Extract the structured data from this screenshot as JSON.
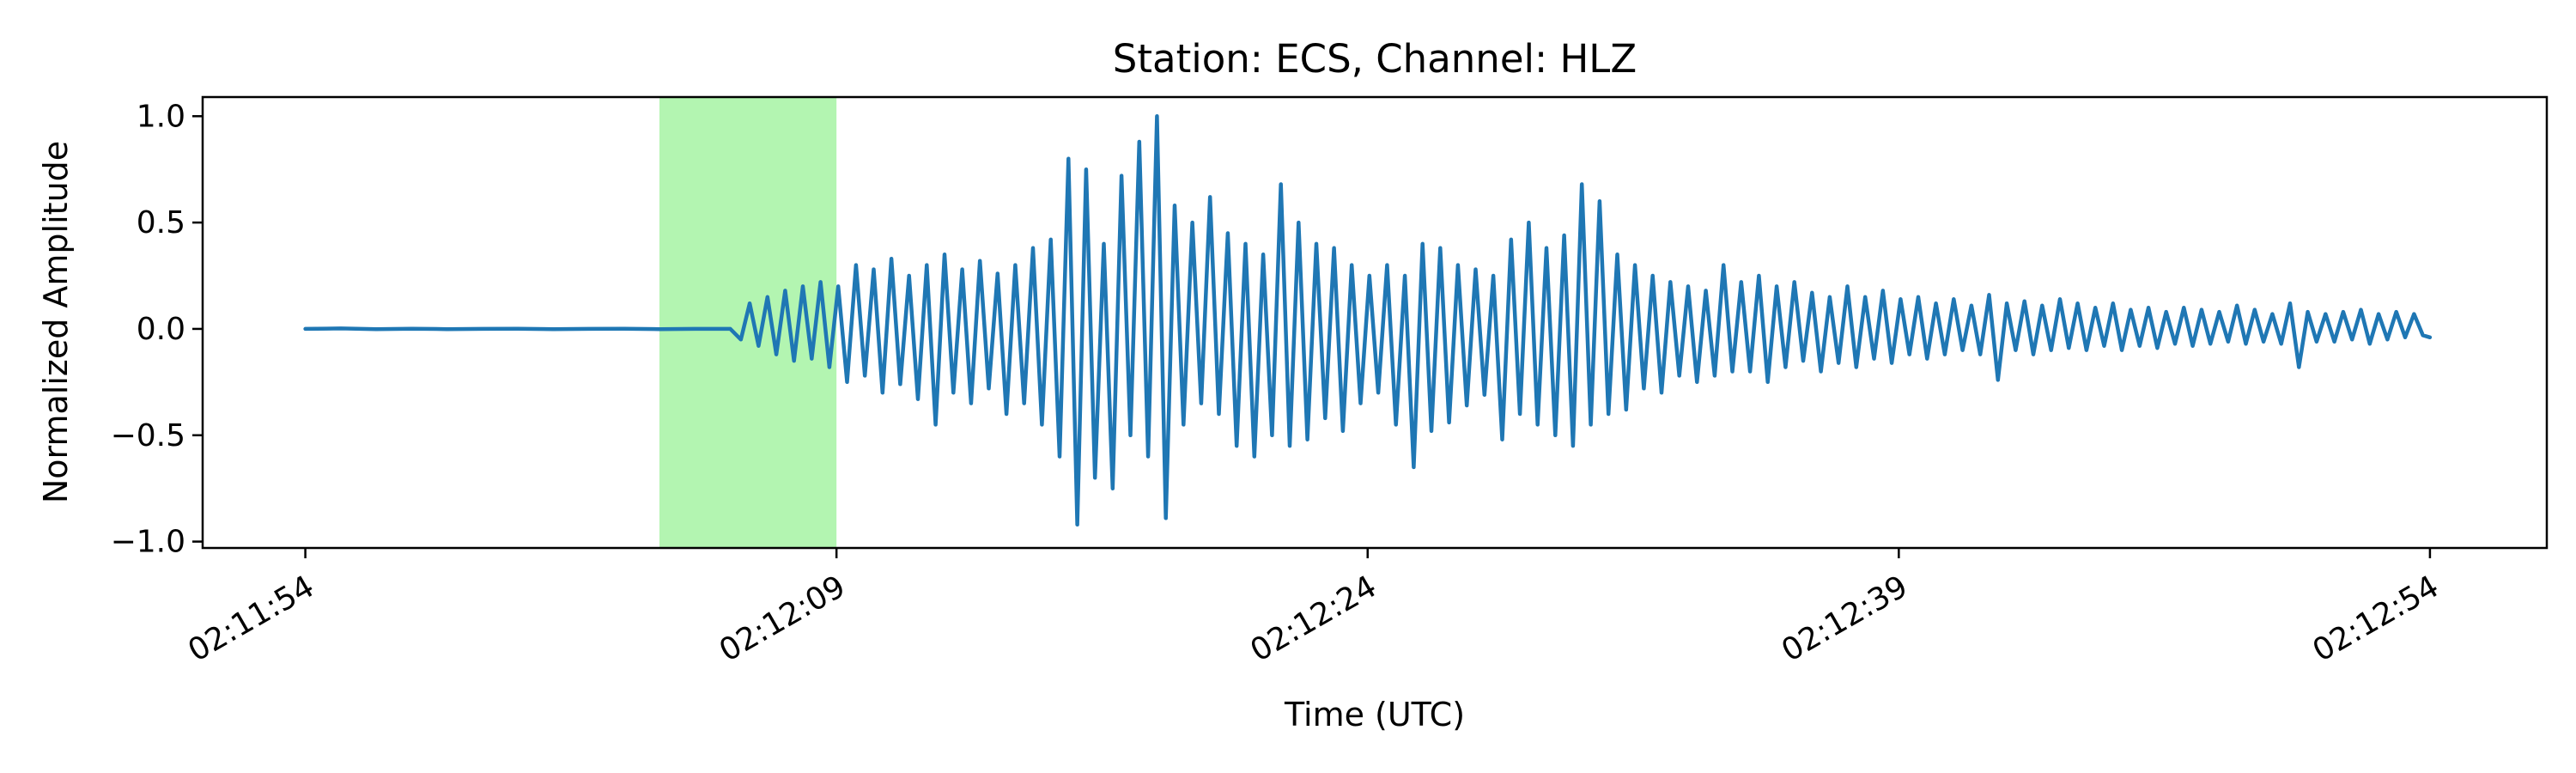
{
  "chart_data": {
    "type": "line",
    "title": "Station: ECS, Channel: HLZ",
    "xlabel": "Time (UTC)",
    "ylabel": "Normalized Amplitude",
    "x_unit": "seconds since 02:11:54 UTC",
    "xlim": [
      -2.9,
      63.3
    ],
    "ylim": [
      -1.03,
      1.09
    ],
    "x_ticks": [
      {
        "value": 0,
        "label": "02:11:54"
      },
      {
        "value": 15,
        "label": "02:12:09"
      },
      {
        "value": 30,
        "label": "02:12:24"
      },
      {
        "value": 45,
        "label": "02:12:39"
      },
      {
        "value": 60,
        "label": "02:12:54"
      }
    ],
    "y_ticks": [
      {
        "value": 1.0,
        "label": "1.0"
      },
      {
        "value": 0.5,
        "label": "0.5"
      },
      {
        "value": 0.0,
        "label": "0.0"
      },
      {
        "value": -0.5,
        "label": "−0.5"
      },
      {
        "value": -1.0,
        "label": "−1.0"
      }
    ],
    "highlight": {
      "x_start": 10.0,
      "x_end": 15.0,
      "color": "#b3f5b1"
    },
    "series": [
      {
        "name": "HLZ",
        "color": "#1f77b4",
        "x": [
          0,
          1,
          2,
          3,
          4,
          5,
          6,
          7,
          8,
          9,
          10,
          11,
          12,
          12.3,
          12.55,
          12.8,
          13.05,
          13.3,
          13.55,
          13.8,
          14.05,
          14.3,
          14.55,
          14.8,
          15.05,
          15.3,
          15.55,
          15.8,
          16.05,
          16.3,
          16.55,
          16.8,
          17.05,
          17.3,
          17.55,
          17.8,
          18.05,
          18.3,
          18.55,
          18.8,
          19.05,
          19.3,
          19.55,
          19.8,
          20.05,
          20.3,
          20.55,
          20.8,
          21.05,
          21.3,
          21.55,
          21.8,
          22.05,
          22.3,
          22.55,
          22.8,
          23.05,
          23.3,
          23.55,
          23.8,
          24.05,
          24.3,
          24.55,
          24.8,
          25.05,
          25.3,
          25.55,
          25.8,
          26.05,
          26.3,
          26.55,
          26.8,
          27.05,
          27.3,
          27.55,
          27.8,
          28.05,
          28.3,
          28.55,
          28.8,
          29.05,
          29.3,
          29.55,
          29.8,
          30.05,
          30.3,
          30.55,
          30.8,
          31.05,
          31.3,
          31.55,
          31.8,
          32.05,
          32.3,
          32.55,
          32.8,
          33.05,
          33.3,
          33.55,
          33.8,
          34.05,
          34.3,
          34.55,
          34.8,
          35.05,
          35.3,
          35.55,
          35.8,
          36.05,
          36.3,
          36.55,
          36.8,
          37.05,
          37.3,
          37.55,
          37.8,
          38.05,
          38.3,
          38.55,
          38.8,
          39.05,
          39.3,
          39.55,
          39.8,
          40.05,
          40.3,
          40.55,
          40.8,
          41.05,
          41.3,
          41.55,
          41.8,
          42.05,
          42.3,
          42.55,
          42.8,
          43.05,
          43.3,
          43.55,
          43.8,
          44.05,
          44.3,
          44.55,
          44.8,
          45.05,
          45.3,
          45.55,
          45.8,
          46.05,
          46.3,
          46.55,
          46.8,
          47.05,
          47.3,
          47.55,
          47.8,
          48.05,
          48.3,
          48.55,
          48.8,
          49.05,
          49.3,
          49.55,
          49.8,
          50.05,
          50.3,
          50.55,
          50.8,
          51.05,
          51.3,
          51.55,
          51.8,
          52.05,
          52.3,
          52.55,
          52.8,
          53.05,
          53.3,
          53.55,
          53.8,
          54.05,
          54.3,
          54.55,
          54.8,
          55.05,
          55.3,
          55.55,
          55.8,
          56.05,
          56.3,
          56.55,
          56.8,
          57.05,
          57.3,
          57.55,
          57.8,
          58.05,
          58.3,
          58.55,
          58.8,
          59.05,
          59.3,
          59.55,
          59.8,
          60.0
        ],
        "y": [
          0.0,
          0.002,
          -0.001,
          0.001,
          -0.001,
          0.0,
          0.001,
          -0.001,
          0.0,
          0.001,
          -0.001,
          0.0,
          0.0,
          -0.05,
          0.12,
          -0.08,
          0.15,
          -0.12,
          0.18,
          -0.15,
          0.2,
          -0.14,
          0.22,
          -0.18,
          0.2,
          -0.25,
          0.3,
          -0.22,
          0.28,
          -0.3,
          0.33,
          -0.26,
          0.25,
          -0.33,
          0.3,
          -0.45,
          0.35,
          -0.3,
          0.28,
          -0.35,
          0.32,
          -0.28,
          0.26,
          -0.4,
          0.3,
          -0.35,
          0.38,
          -0.45,
          0.42,
          -0.6,
          0.8,
          -0.92,
          0.75,
          -0.7,
          0.4,
          -0.75,
          0.72,
          -0.5,
          0.88,
          -0.6,
          1.0,
          -0.89,
          0.58,
          -0.45,
          0.5,
          -0.35,
          0.62,
          -0.4,
          0.45,
          -0.55,
          0.4,
          -0.6,
          0.35,
          -0.5,
          0.68,
          -0.55,
          0.5,
          -0.52,
          0.4,
          -0.42,
          0.38,
          -0.48,
          0.3,
          -0.35,
          0.25,
          -0.3,
          0.3,
          -0.45,
          0.25,
          -0.65,
          0.4,
          -0.48,
          0.38,
          -0.44,
          0.3,
          -0.36,
          0.28,
          -0.31,
          0.25,
          -0.52,
          0.42,
          -0.4,
          0.5,
          -0.45,
          0.38,
          -0.5,
          0.44,
          -0.55,
          0.68,
          -0.45,
          0.6,
          -0.4,
          0.35,
          -0.38,
          0.3,
          -0.28,
          0.25,
          -0.3,
          0.22,
          -0.22,
          0.2,
          -0.25,
          0.18,
          -0.22,
          0.3,
          -0.2,
          0.22,
          -0.2,
          0.25,
          -0.25,
          0.2,
          -0.18,
          0.22,
          -0.15,
          0.17,
          -0.2,
          0.15,
          -0.16,
          0.2,
          -0.18,
          0.15,
          -0.14,
          0.18,
          -0.16,
          0.14,
          -0.12,
          0.15,
          -0.14,
          0.12,
          -0.12,
          0.14,
          -0.1,
          0.11,
          -0.12,
          0.16,
          -0.24,
          0.12,
          -0.1,
          0.13,
          -0.12,
          0.11,
          -0.1,
          0.14,
          -0.09,
          0.12,
          -0.1,
          0.1,
          -0.08,
          0.12,
          -0.1,
          0.09,
          -0.08,
          0.1,
          -0.09,
          0.08,
          -0.07,
          0.1,
          -0.08,
          0.09,
          -0.07,
          0.08,
          -0.06,
          0.11,
          -0.07,
          0.09,
          -0.06,
          0.07,
          -0.07,
          0.12,
          -0.18,
          0.08,
          -0.06,
          0.07,
          -0.06,
          0.08,
          -0.05,
          0.09,
          -0.07,
          0.07,
          -0.05,
          0.08,
          -0.04,
          0.07,
          -0.03,
          -0.04
        ]
      }
    ]
  }
}
